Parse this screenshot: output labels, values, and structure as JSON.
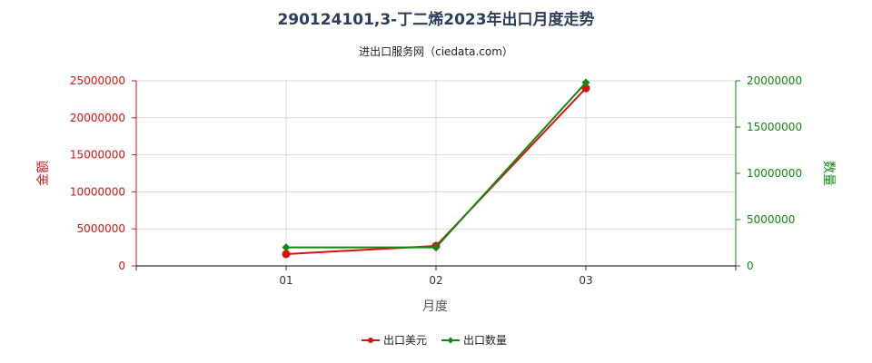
{
  "chart_data": {
    "type": "line",
    "title": "290124101,3-丁二烯2023年出口月度走势",
    "subtitle": "进出口服务网（ciedata.com）",
    "xlabel": "月度",
    "categories": [
      "01",
      "02",
      "03"
    ],
    "y_left": {
      "label": "金额",
      "ylim": [
        0,
        25000000
      ],
      "ticks": [
        "0",
        "5000000",
        "10000000",
        "15000000",
        "20000000",
        "25000000"
      ],
      "color": "#dd1111"
    },
    "y_right": {
      "label": "数量",
      "ylim": [
        0,
        20000000
      ],
      "ticks": [
        "0",
        "5000000",
        "10000000",
        "15000000",
        "20000000"
      ],
      "color": "#118811"
    },
    "series": [
      {
        "name": "出口美元",
        "axis": "left",
        "color": "#dd1111",
        "values": [
          1600000,
          2700000,
          24000000
        ]
      },
      {
        "name": "出口数量",
        "axis": "right",
        "color": "#118811",
        "values": [
          2000000,
          2000000,
          19800000
        ]
      }
    ],
    "grid": true,
    "legend_position": "bottom-center"
  }
}
